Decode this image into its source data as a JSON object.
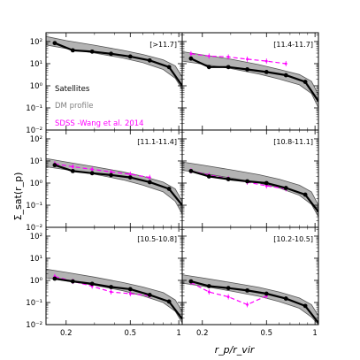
{
  "colors": {
    "satellites": "#000000",
    "dm_band": "#b3b3b3",
    "dm_edge": "#555555",
    "sdss": "#ff00ff"
  },
  "chart_data": {
    "type": "line",
    "layout": "3x2 grid of panels with shared axes",
    "xlabel": "r_p/r_vir",
    "ylabel": "Σ_sat(r_p)",
    "xscale": "log",
    "yscale": "log",
    "xlim": [
      0.15,
      1.05
    ],
    "ylim": [
      0.01,
      250
    ],
    "xticks": [
      0.2,
      0.5,
      1
    ],
    "xtick_labels": [
      "0.2",
      "0.5",
      "1"
    ],
    "yticks": [
      0.01,
      0.1,
      1,
      10,
      100
    ],
    "ytick_labels": [
      "10⁻²",
      "10⁻¹",
      "10⁰",
      "10¹",
      "10²"
    ],
    "legend": {
      "location": "inside top-left panel, lower-left",
      "entries": [
        "Satellites",
        "DM profile",
        "SDSS -Wang et al. 2014"
      ]
    },
    "panels": [
      {
        "label": "[>11.7]",
        "satellites": {
          "x": [
            0.17,
            0.22,
            0.29,
            0.38,
            0.5,
            0.66,
            0.87,
            1.05
          ],
          "y": [
            85,
            40,
            35,
            28,
            21,
            14,
            7,
            1.0
          ]
        },
        "dm_upper": {
          "x": [
            0.15,
            0.2,
            0.3,
            0.45,
            0.6,
            0.8,
            0.95,
            1.05
          ],
          "y": [
            170,
            110,
            68,
            40,
            26,
            15,
            8,
            2.5
          ]
        },
        "dm_lower": {
          "x": [
            0.15,
            0.2,
            0.3,
            0.45,
            0.6,
            0.8,
            0.95,
            1.05
          ],
          "y": [
            70,
            48,
            30,
            18,
            11,
            5.5,
            2.2,
            0.7
          ]
        },
        "sdss": null
      },
      {
        "label": "[11.4-11.7]",
        "satellites": {
          "x": [
            0.17,
            0.22,
            0.29,
            0.38,
            0.5,
            0.66,
            0.87,
            1.05
          ],
          "y": [
            17,
            7,
            7,
            5.5,
            4.2,
            3.0,
            1.5,
            0.2
          ]
        },
        "dm_upper": {
          "x": [
            0.15,
            0.2,
            0.3,
            0.45,
            0.6,
            0.8,
            0.95,
            1.05
          ],
          "y": [
            35,
            25,
            16,
            9,
            5.5,
            3.2,
            1.6,
            0.4
          ]
        },
        "dm_lower": {
          "x": [
            0.15,
            0.2,
            0.3,
            0.45,
            0.6,
            0.8,
            0.95,
            1.05
          ],
          "y": [
            13,
            9.5,
            6,
            3.4,
            2.0,
            1.1,
            0.45,
            0.1
          ]
        },
        "sdss": {
          "x": [
            0.17,
            0.22,
            0.29,
            0.38,
            0.5,
            0.66
          ],
          "y": [
            28,
            22,
            20,
            16,
            13,
            10
          ]
        }
      },
      {
        "label": "[11.1-11.4]",
        "satellites": {
          "x": [
            0.17,
            0.22,
            0.29,
            0.38,
            0.5,
            0.66,
            0.87,
            1.05
          ],
          "y": [
            6.5,
            3.5,
            2.8,
            2.3,
            1.8,
            1.1,
            0.55,
            0.1
          ]
        },
        "dm_upper": {
          "x": [
            0.15,
            0.2,
            0.3,
            0.45,
            0.6,
            0.8,
            0.95,
            1.05
          ],
          "y": [
            13,
            9,
            5.5,
            3.2,
            2.0,
            1.1,
            0.55,
            0.15
          ]
        },
        "dm_lower": {
          "x": [
            0.15,
            0.2,
            0.3,
            0.45,
            0.6,
            0.8,
            0.95,
            1.05
          ],
          "y": [
            5.5,
            4,
            2.5,
            1.4,
            0.8,
            0.4,
            0.15,
            0.04
          ]
        },
        "sdss": {
          "x": [
            0.17,
            0.22,
            0.29,
            0.38,
            0.5,
            0.66
          ],
          "y": [
            7.5,
            5.5,
            4.2,
            3.2,
            2.5,
            1.8
          ]
        }
      },
      {
        "label": "[10.8-11.1]",
        "satellites": {
          "x": [
            0.17,
            0.22,
            0.29,
            0.38,
            0.5,
            0.66,
            0.87,
            1.05
          ],
          "y": [
            3.5,
            2.0,
            1.5,
            1.2,
            1.0,
            0.6,
            0.3,
            0.05
          ]
        },
        "dm_upper": {
          "x": [
            0.15,
            0.2,
            0.3,
            0.45,
            0.6,
            0.8,
            0.95,
            1.05
          ],
          "y": [
            9,
            6.5,
            4,
            2.4,
            1.5,
            0.8,
            0.4,
            0.1
          ]
        },
        "dm_lower": {
          "x": [
            0.15,
            0.2,
            0.3,
            0.45,
            0.6,
            0.8,
            0.95,
            1.05
          ],
          "y": [
            3.8,
            2.8,
            1.7,
            1.0,
            0.6,
            0.28,
            0.11,
            0.03
          ]
        },
        "sdss": {
          "x": [
            0.17,
            0.22,
            0.29,
            0.38,
            0.5,
            0.66
          ],
          "y": [
            3.6,
            2.3,
            1.6,
            1.1,
            0.75,
            0.55
          ]
        }
      },
      {
        "label": "[10.5-10.8]",
        "satellites": {
          "x": [
            0.17,
            0.22,
            0.29,
            0.38,
            0.5,
            0.66,
            0.87,
            1.05
          ],
          "y": [
            1.2,
            0.9,
            0.7,
            0.5,
            0.4,
            0.22,
            0.11,
            0.018
          ]
        },
        "dm_upper": {
          "x": [
            0.15,
            0.2,
            0.3,
            0.45,
            0.6,
            0.8,
            0.95,
            1.05
          ],
          "y": [
            3.2,
            2.3,
            1.4,
            0.8,
            0.5,
            0.28,
            0.13,
            0.04
          ]
        },
        "dm_lower": {
          "x": [
            0.15,
            0.2,
            0.3,
            0.45,
            0.6,
            0.8,
            0.95,
            1.05
          ],
          "y": [
            1.3,
            0.95,
            0.6,
            0.34,
            0.2,
            0.1,
            0.04,
            0.012
          ]
        },
        "sdss": {
          "x": [
            0.17,
            0.22,
            0.29,
            0.38,
            0.5,
            0.66
          ],
          "y": [
            1.5,
            0.9,
            0.55,
            0.3,
            0.25,
            0.2
          ]
        }
      },
      {
        "label": "[10.2-10.5]",
        "satellites": {
          "x": [
            0.17,
            0.22,
            0.29,
            0.38,
            0.5,
            0.66,
            0.87,
            1.05
          ],
          "y": [
            0.9,
            0.55,
            0.45,
            0.35,
            0.25,
            0.15,
            0.07,
            0.012
          ]
        },
        "dm_upper": {
          "x": [
            0.15,
            0.2,
            0.3,
            0.45,
            0.6,
            0.8,
            0.95,
            1.05
          ],
          "y": [
            1.8,
            1.3,
            0.8,
            0.48,
            0.3,
            0.16,
            0.08,
            0.025
          ]
        },
        "dm_lower": {
          "x": [
            0.15,
            0.2,
            0.3,
            0.45,
            0.6,
            0.8,
            0.95,
            1.05
          ],
          "y": [
            0.75,
            0.55,
            0.33,
            0.19,
            0.11,
            0.055,
            0.022,
            0.008
          ]
        },
        "sdss": {
          "x": [
            0.17,
            0.22,
            0.29,
            0.38,
            0.5
          ],
          "y": [
            0.8,
            0.3,
            0.18,
            0.08,
            0.2
          ]
        }
      }
    ]
  }
}
